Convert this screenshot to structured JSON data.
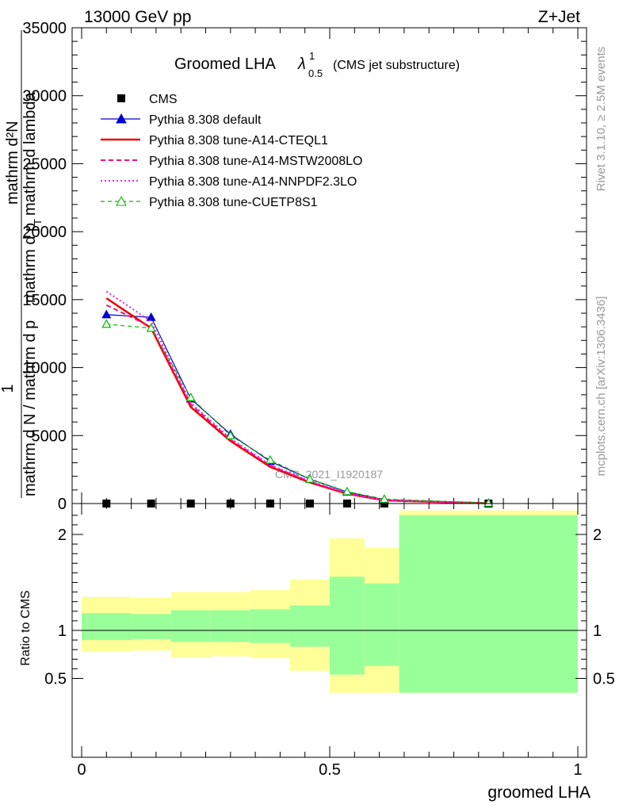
{
  "header": {
    "energy_label": "13000 GeV pp",
    "process_label": "Z+Jet",
    "rivet_label": "Rivet 3.1.10, ≥ 2.5M events",
    "mcplots_label": "mcplots.cern.ch [arXiv:1306.3436]"
  },
  "colors": {
    "cms": "#000000",
    "default": "#0000cc",
    "cteql1": "#ee0000",
    "mstw": "#ee1177",
    "nnpdf": "#ee22ee",
    "cuetp8s1": "#00bb00",
    "band_inner": "#99ff99",
    "band_outer": "#ffff99"
  },
  "chart_data": [
    {
      "type": "line",
      "panel": "main",
      "title": "Groomed LHA",
      "title_lambda": "λ",
      "title_sup": "1",
      "title_sub": "0.5",
      "subtitle": "(CMS jet substructure)",
      "watermark": "CMS_2021_I1920187",
      "ylabel_numerator": "mathrm d²N",
      "ylabel_one": "1",
      "ylabel_denominator_left": "mathrm d N / mathrm d p",
      "ylabel_denominator_right": "mathrm d p",
      "ylabel_sub": "T",
      "ylabel_tail": "mathrm d lambda",
      "ylim": [
        0,
        35000
      ],
      "xlim": [
        0,
        1
      ],
      "yticks": [
        0,
        5000,
        10000,
        15000,
        20000,
        25000,
        30000,
        35000
      ],
      "ytick_labels": [
        "0",
        "5000",
        "10000",
        "15000",
        "20000",
        "25000",
        "30000",
        "35000"
      ],
      "legend_position": "top-left",
      "x": [
        0.05,
        0.14,
        0.22,
        0.3,
        0.38,
        0.46,
        0.535,
        0.61,
        0.82
      ],
      "series": [
        {
          "key": "cms",
          "name": "CMS",
          "style": "marker",
          "values": [
            0,
            0,
            0,
            0,
            0,
            0,
            0,
            0,
            0
          ]
        },
        {
          "key": "default",
          "name": "Pythia 8.308 default",
          "style": "line-triangle",
          "values": [
            13900,
            13700,
            7700,
            5100,
            3100,
            1800,
            850,
            280,
            30
          ]
        },
        {
          "key": "cteql1",
          "name": "Pythia 8.308 tune-A14-CTEQL1",
          "style": "solid",
          "values": [
            15100,
            12900,
            7100,
            4600,
            2700,
            1550,
            720,
            230,
            20
          ]
        },
        {
          "key": "mstw",
          "name": "Pythia 8.308 tune-A14-MSTW2008LO",
          "style": "dashed",
          "values": [
            14600,
            13000,
            7300,
            4700,
            2800,
            1600,
            750,
            240,
            20
          ]
        },
        {
          "key": "nnpdf",
          "name": "Pythia 8.308 tune-A14-NNPDF2.3LO",
          "style": "dotted",
          "values": [
            15600,
            13400,
            7400,
            4800,
            2850,
            1650,
            770,
            250,
            25
          ]
        },
        {
          "key": "cuetp8s1",
          "name": "Pythia 8.308 tune-CUETP8S1",
          "style": "dashed-open-triangle",
          "values": [
            13200,
            12900,
            7800,
            5000,
            3200,
            1800,
            880,
            330,
            40
          ]
        }
      ]
    },
    {
      "type": "area",
      "panel": "ratio",
      "ylabel": "Ratio to CMS",
      "xlabel": "groomed LHA",
      "xlim": [
        0,
        1
      ],
      "ylim": [
        0.35,
        2.25
      ],
      "xticks": [
        0,
        0.5,
        1
      ],
      "xtick_labels": [
        "0",
        "0.5",
        "1"
      ],
      "yticks": [
        0.5,
        1,
        2
      ],
      "ytick_labels": [
        "0.5",
        "1",
        "2"
      ],
      "bins": [
        {
          "lo": 0.0,
          "hi": 0.1,
          "inner": [
            0.9,
            1.18
          ],
          "outer": [
            0.78,
            1.35
          ]
        },
        {
          "lo": 0.1,
          "hi": 0.18,
          "inner": [
            0.91,
            1.17
          ],
          "outer": [
            0.79,
            1.34
          ]
        },
        {
          "lo": 0.18,
          "hi": 0.26,
          "inner": [
            0.88,
            1.21
          ],
          "outer": [
            0.72,
            1.4
          ]
        },
        {
          "lo": 0.26,
          "hi": 0.34,
          "inner": [
            0.88,
            1.21
          ],
          "outer": [
            0.73,
            1.4
          ]
        },
        {
          "lo": 0.34,
          "hi": 0.42,
          "inner": [
            0.87,
            1.22
          ],
          "outer": [
            0.71,
            1.42
          ]
        },
        {
          "lo": 0.42,
          "hi": 0.5,
          "inner": [
            0.83,
            1.26
          ],
          "outer": [
            0.58,
            1.53
          ]
        },
        {
          "lo": 0.5,
          "hi": 0.57,
          "inner": [
            0.54,
            1.56
          ],
          "outer": [
            0.35,
            1.96
          ]
        },
        {
          "lo": 0.57,
          "hi": 0.64,
          "inner": [
            0.63,
            1.49
          ],
          "outer": [
            0.35,
            1.86
          ]
        },
        {
          "lo": 0.64,
          "hi": 1.0,
          "inner": [
            0.35,
            2.2
          ],
          "outer": [
            0.35,
            2.25
          ]
        }
      ]
    }
  ]
}
